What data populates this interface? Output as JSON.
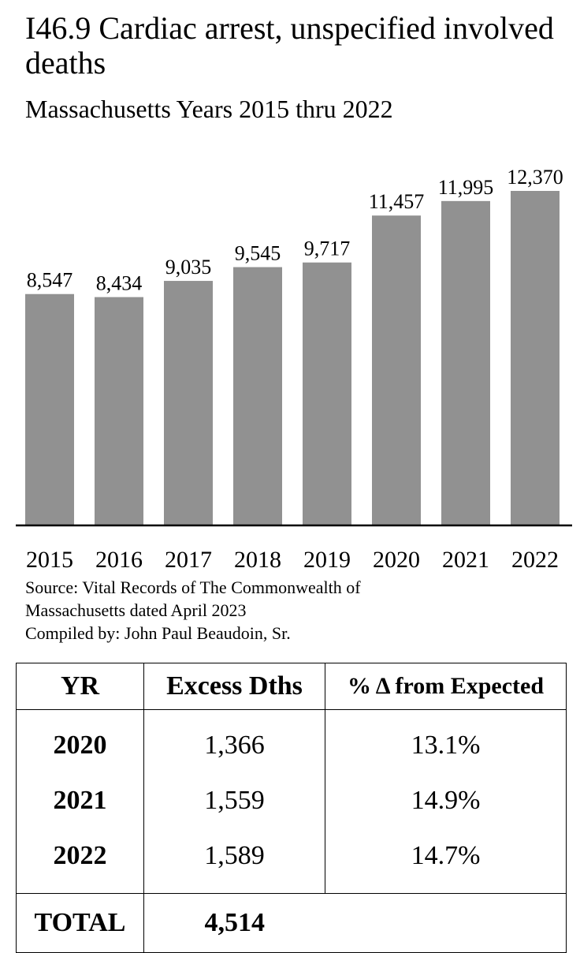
{
  "chart_data": {
    "type": "bar",
    "title": "I46.9 Cardiac arrest, unspecified involved deaths",
    "subtitle": "Massachusetts Years 2015 thru 2022",
    "categories": [
      "2015",
      "2016",
      "2017",
      "2018",
      "2019",
      "2020",
      "2021",
      "2022"
    ],
    "values": [
      8547,
      8434,
      9035,
      9545,
      9717,
      11457,
      11995,
      12370
    ],
    "data_labels": [
      "8,547",
      "8,434",
      "9,035",
      "9,545",
      "9,717",
      "11,457",
      "11,995",
      "12,370"
    ],
    "xlabel": "",
    "ylabel": "",
    "ylim": [
      0,
      12370
    ],
    "bar_color": "#919191",
    "grid": false,
    "legend": "none"
  },
  "source": {
    "line1": "Source:  Vital Records of The Commonwealth of",
    "line2": "Massachusetts dated April 2023",
    "line3": "Compiled by:  John Paul Beaudoin, Sr."
  },
  "table": {
    "headers": [
      "YR",
      "Excess Dths",
      "% Δ from Expected"
    ],
    "rows": [
      [
        "2020",
        "1,366",
        "13.1%"
      ],
      [
        "2021",
        "1,559",
        "14.9%"
      ],
      [
        "2022",
        "1,589",
        "14.7%"
      ]
    ],
    "total_label": "TOTAL",
    "total_value": "4,514"
  }
}
